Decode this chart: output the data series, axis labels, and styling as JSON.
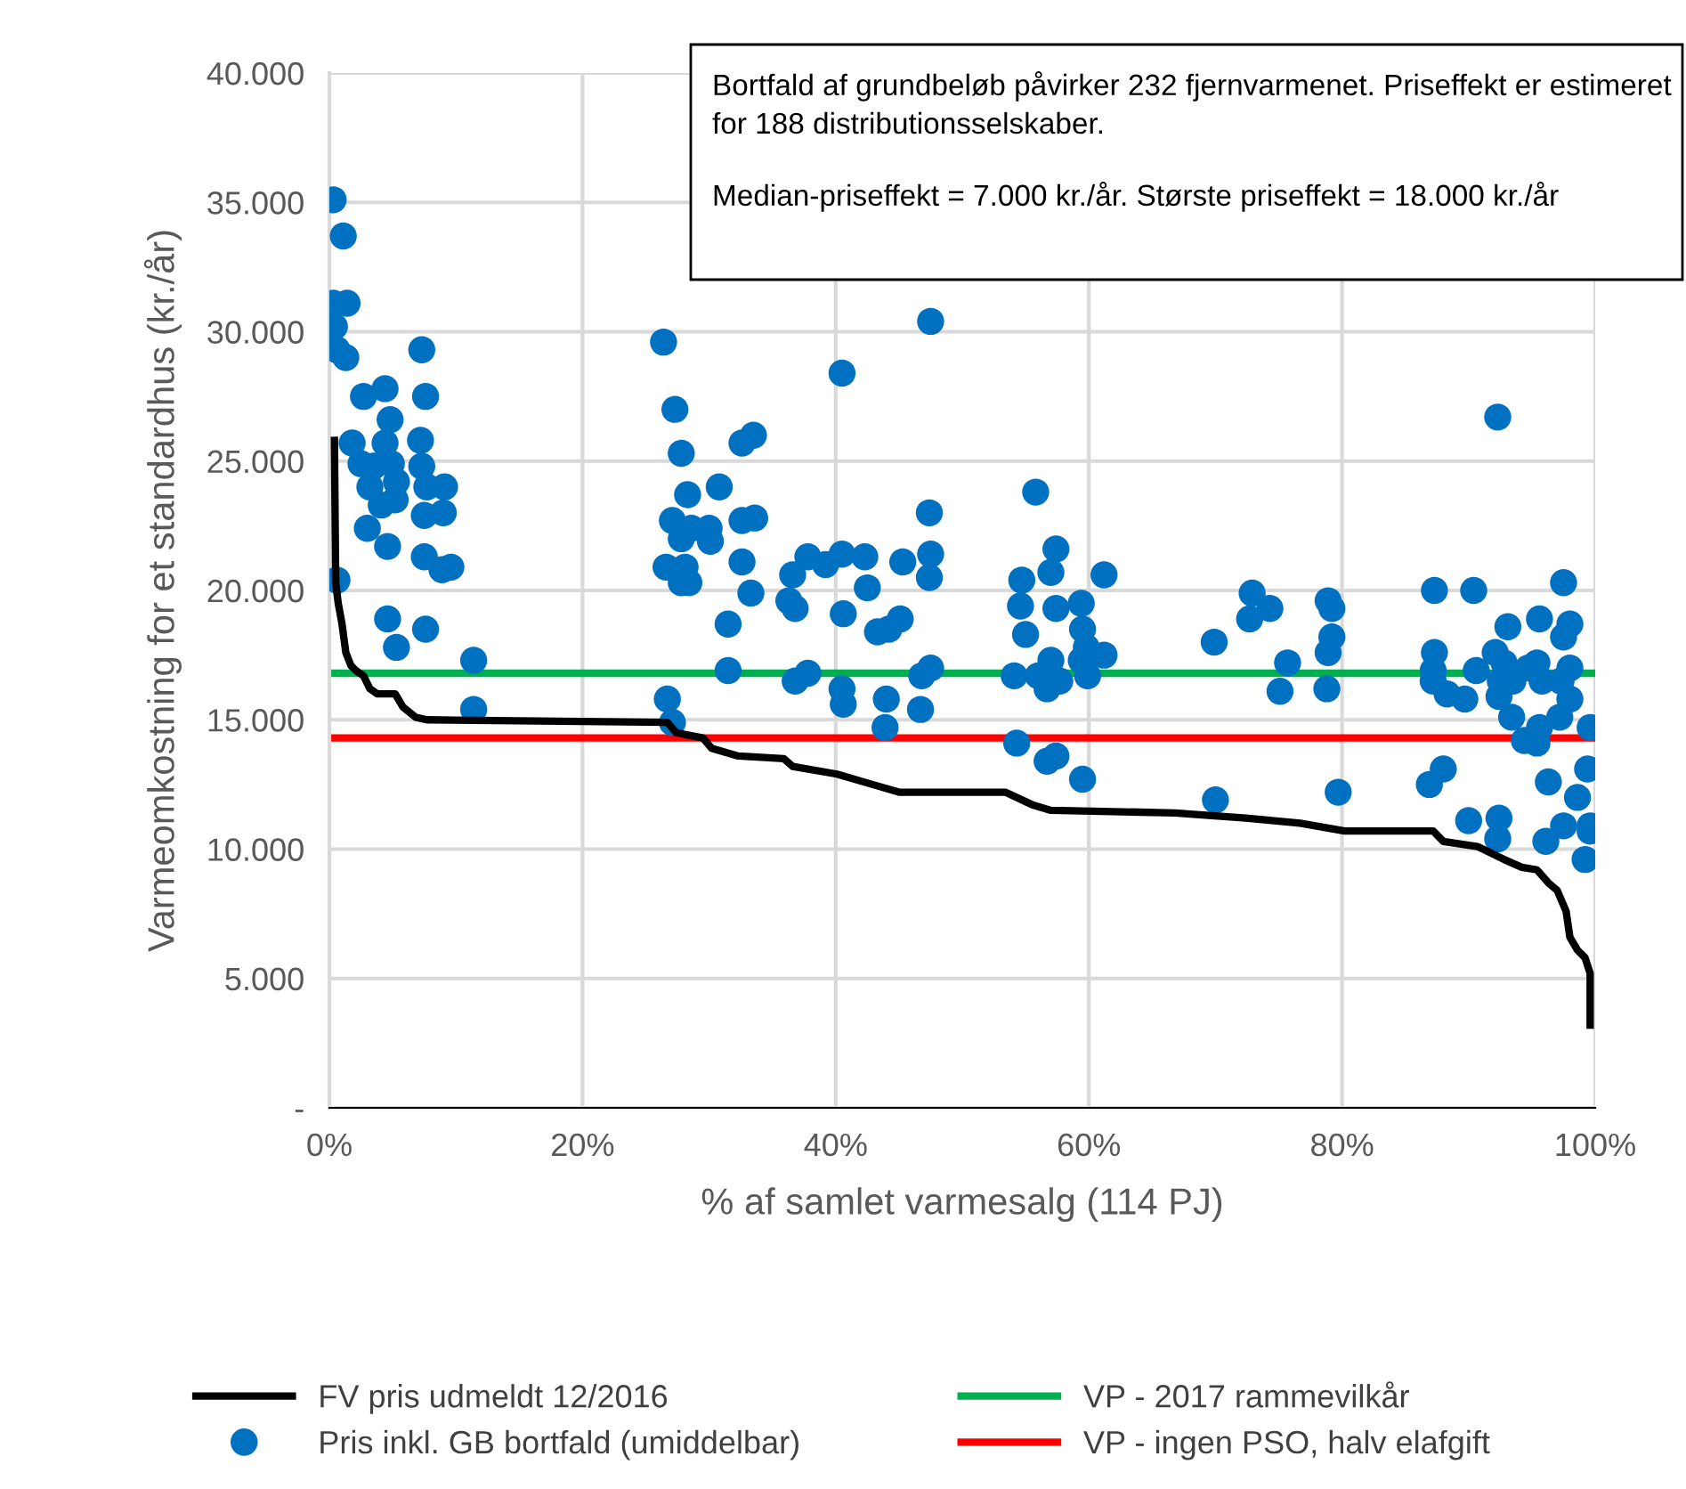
{
  "chart_data": {
    "type": "scatter",
    "xlabel": "% af samlet varmesalg (114 PJ)",
    "ylabel": "Varmeomkostning for et standardhus (kr./år)",
    "annotations": [
      "Bortfald af grundbeløb påvirker 232 fjernvarmenet. Priseffekt er estimeret for 188 distributionsselskaber.",
      "Median-priseffekt = 7.000 kr./år. Største priseffekt = 18.000 kr./år"
    ],
    "xlim": [
      0,
      100
    ],
    "xticks": [
      {
        "value": 0,
        "label": "0%"
      },
      {
        "value": 20,
        "label": "20%"
      },
      {
        "value": 40,
        "label": "40%"
      },
      {
        "value": 60,
        "label": "60%"
      },
      {
        "value": 80,
        "label": "80%"
      },
      {
        "value": 100,
        "label": "100%"
      }
    ],
    "ylim": [
      0,
      40000
    ],
    "yticks": [
      {
        "value": 0,
        "label": "-"
      },
      {
        "value": 5000,
        "label": "5.000"
      },
      {
        "value": 10000,
        "label": "10.000"
      },
      {
        "value": 15000,
        "label": "15.000"
      },
      {
        "value": 20000,
        "label": "20.000"
      },
      {
        "value": 25000,
        "label": "25.000"
      },
      {
        "value": 30000,
        "label": "30.000"
      },
      {
        "value": 35000,
        "label": "35.000"
      },
      {
        "value": 40000,
        "label": "40.000"
      }
    ],
    "grid": true,
    "legend": "bottom",
    "series": [
      {
        "name": "FV pris udmeldt 12/2016",
        "type": "line",
        "color": "#000000",
        "marker": "none",
        "line_style": "solid",
        "x": [
          0.4,
          0.5,
          0.7,
          1.0,
          1.3,
          1.7,
          2.1,
          2.7,
          3.2,
          3.8,
          5.2,
          5.8,
          6.8,
          7.7,
          26.7,
          27.4,
          29.5,
          30.2,
          32.3,
          35.9,
          36.6,
          40.1,
          42.9,
          45.0,
          53.4,
          55.6,
          57.0,
          66.8,
          72.4,
          76.7,
          80.2,
          87.2,
          88.0,
          90.7,
          92.8,
          94.2,
          95.4,
          96.3,
          97.0,
          97.7,
          98.0,
          98.6,
          99.2,
          99.6,
          99.6
        ],
        "values": [
          25800,
          20300,
          19500,
          18700,
          17600,
          17100,
          16900,
          16700,
          16200,
          16000,
          16000,
          15500,
          15100,
          15000,
          14900,
          14500,
          14300,
          13900,
          13600,
          13500,
          13200,
          12900,
          12500,
          12200,
          12200,
          11700,
          11500,
          11400,
          11200,
          11000,
          10700,
          10700,
          10300,
          10100,
          9600,
          9300,
          9200,
          8700,
          8400,
          7600,
          6600,
          6100,
          5800,
          5200,
          3200
        ]
      },
      {
        "name": "Pris inkl. GB bortfald (umiddelbar)",
        "color": "#0070c0",
        "marker": "circle",
        "x": [
          0.3,
          1.1,
          0.3,
          1.4,
          0.4,
          0.6,
          1.3,
          7.3,
          2.7,
          4.4,
          7.6,
          4.8,
          1.8,
          4.4,
          7.2,
          2.5,
          3.5,
          4.9,
          7.3,
          3.2,
          5.3,
          7.7,
          9.1,
          4.1,
          5.2,
          7.5,
          9.0,
          3.0,
          4.6,
          7.5,
          8.9,
          9.6,
          0.6,
          4.6,
          7.6,
          5.3,
          11.4,
          11.4,
          26.4,
          27.3,
          27.8,
          28.3,
          27.1,
          28.6,
          27.8,
          30.0,
          30.1,
          30.8,
          32.6,
          33.5,
          32.6,
          33.6,
          26.6,
          28.1,
          27.8,
          28.4,
          32.6,
          33.3,
          31.5,
          31.5,
          26.7,
          27.1,
          40.5,
          47.5,
          36.6,
          36.3,
          36.8,
          37.8,
          39.2,
          40.5,
          42.3,
          45.3,
          47.5,
          47.4,
          47.4,
          42.5,
          40.6,
          43.3,
          44.2,
          45.1,
          36.8,
          37.8,
          40.5,
          40.6,
          44.0,
          43.9,
          46.7,
          46.8,
          47.5,
          55.8,
          57.4,
          57.0,
          54.7,
          54.6,
          57.4,
          59.4,
          61.2,
          55.0,
          59.5,
          59.8,
          59.4,
          61.2,
          57.0,
          54.1,
          56.0,
          57.7,
          56.7,
          59.9,
          54.3,
          57.4,
          56.7,
          59.5,
          70.0,
          69.9,
          72.9,
          72.7,
          74.3,
          75.7,
          75.1,
          92.3,
          78.9,
          79.2,
          79.2,
          78.9,
          78.8,
          79.7,
          87.3,
          90.4,
          97.5,
          93.1,
          95.6,
          98.0,
          97.5,
          87.3,
          92.1,
          92.8,
          95.4,
          98.0,
          94.7,
          87.2,
          87.2,
          90.6,
          88.3,
          89.7,
          92.4,
          93.5,
          92.5,
          95.8,
          98.0,
          97.3,
          93.4,
          97.2,
          94.4,
          95.4,
          95.6,
          99.6,
          86.9,
          88.0,
          96.3,
          99.4,
          98.6,
          90.0,
          92.4,
          92.3,
          96.1,
          97.5,
          99.6,
          99.6,
          99.2
        ],
        "values": [
          35100,
          33700,
          31100,
          31100,
          30200,
          29300,
          29000,
          29300,
          27500,
          27800,
          27500,
          26600,
          25700,
          25700,
          25800,
          24900,
          24800,
          24900,
          24800,
          24000,
          24200,
          24000,
          24000,
          23300,
          23500,
          22900,
          23000,
          22400,
          21700,
          21300,
          20800,
          20900,
          20400,
          18900,
          18500,
          17800,
          17300,
          15400,
          29600,
          27000,
          25300,
          23700,
          22700,
          22400,
          22000,
          22400,
          21900,
          24000,
          25700,
          26000,
          22700,
          22800,
          20900,
          20900,
          20300,
          20300,
          21100,
          19900,
          18700,
          16900,
          15800,
          14900,
          28400,
          30400,
          20600,
          19600,
          19300,
          21300,
          21000,
          21400,
          21300,
          21100,
          21400,
          20500,
          23000,
          20100,
          19100,
          18400,
          18500,
          18900,
          16500,
          16800,
          16200,
          15600,
          15800,
          14700,
          15400,
          16700,
          17000,
          23800,
          21600,
          20700,
          20400,
          19400,
          19300,
          19500,
          20600,
          18300,
          18500,
          17800,
          17300,
          17500,
          17300,
          16700,
          16700,
          16500,
          16200,
          16700,
          14100,
          13600,
          13400,
          12700,
          11900,
          18000,
          19900,
          18900,
          19300,
          17200,
          16100,
          26700,
          19600,
          19300,
          18200,
          17600,
          16200,
          12200,
          20000,
          20000,
          20300,
          18600,
          18900,
          18700,
          18200,
          17600,
          17600,
          17200,
          17200,
          17000,
          17000,
          16500,
          16900,
          16900,
          16000,
          15800,
          15900,
          16500,
          16500,
          16500,
          15800,
          16500,
          15100,
          15100,
          14200,
          14100,
          14700,
          14700,
          12500,
          13100,
          12600,
          13100,
          12000,
          11100,
          11200,
          10400,
          10300,
          10900,
          10900,
          10700,
          9600
        ]
      }
    ],
    "ref_lines": [
      {
        "axis": "y",
        "value": 16800,
        "label": "VP - 2017 rammevilkår",
        "color": "#00b050",
        "line_style": "solid"
      },
      {
        "axis": "y",
        "value": 14300,
        "label": "VP - ingen PSO, halv elafgift",
        "color": "#ff0000",
        "line_style": "solid"
      }
    ]
  }
}
